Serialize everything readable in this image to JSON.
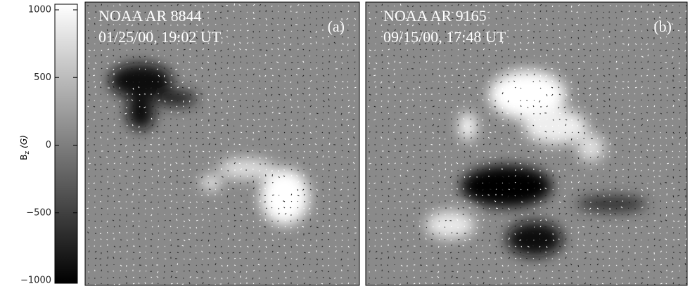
{
  "colorbar": {
    "label": {
      "symbol": "B",
      "subscript": "z",
      "unit": "(G)"
    },
    "range": [
      -1000,
      1000
    ],
    "ticks": [
      1000,
      500,
      0,
      {
        "value": -500,
        "label": "−500"
      },
      {
        "value": -1000,
        "label": "−1000"
      }
    ]
  },
  "panels": [
    {
      "title": "NOAA AR 8844",
      "date": "01/25/00, 19:02 UT",
      "tag": "(a)"
    },
    {
      "title": "NOAA AR 9165",
      "date": "09/15/00, 17:48 UT",
      "tag": "(b)"
    }
  ]
}
